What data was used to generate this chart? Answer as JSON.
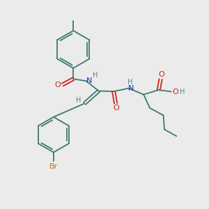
{
  "bg_color": "#ebebeb",
  "bond_color": "#3d7a6e",
  "N_color": "#2222cc",
  "O_color": "#cc2020",
  "Br_color": "#cc7700",
  "H_color": "#4a8a7a",
  "figsize": [
    3.0,
    3.0
  ],
  "dpi": 100,
  "xlim": [
    0,
    10
  ],
  "ylim": [
    0,
    10
  ]
}
